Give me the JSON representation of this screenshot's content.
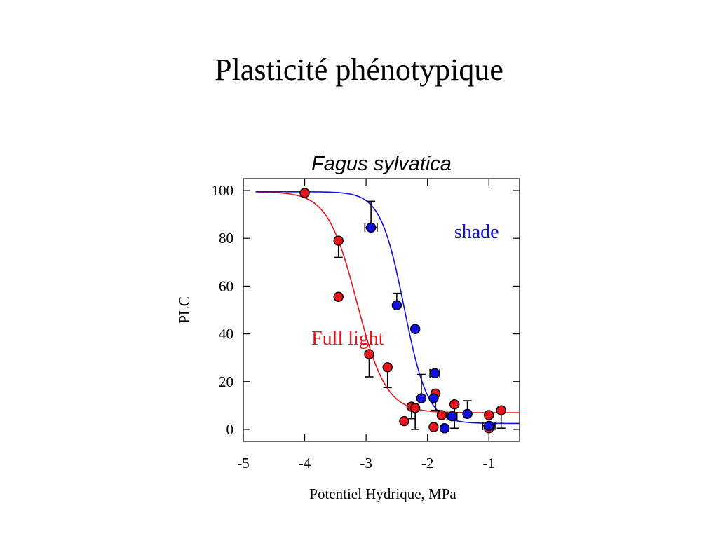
{
  "slide": {
    "title": "Plasticité phénotypique"
  },
  "chart_data": {
    "type": "scatter",
    "title": "Fagus sylvatica",
    "xlabel": "Potentiel Hydrique, MPa",
    "ylabel": "PLC",
    "xlim": [
      -5,
      -0.5
    ],
    "ylim": [
      -5,
      105
    ],
    "xticks": [
      -5,
      -4,
      -3,
      -2,
      -1
    ],
    "yticks": [
      0,
      20,
      40,
      60,
      80,
      100
    ],
    "series": [
      {
        "name": "Full light",
        "color": "#e8141b",
        "points": [
          {
            "x": -4.0,
            "y": 99,
            "err_up": 0
          },
          {
            "x": -3.45,
            "y": 79,
            "err_down": 7
          },
          {
            "x": -3.45,
            "y": 55.5
          },
          {
            "x": -2.95,
            "y": 31.5,
            "err_down": 9.5
          },
          {
            "x": -2.65,
            "y": 26,
            "err_down": 8.5
          },
          {
            "x": -2.38,
            "y": 3.5
          },
          {
            "x": -2.26,
            "y": 9.5,
            "err_down": 5
          },
          {
            "x": -2.2,
            "y": 9,
            "err_down": 9
          },
          {
            "x": -1.87,
            "y": 15,
            "err_down": 7
          },
          {
            "x": -1.9,
            "y": 1
          },
          {
            "x": -1.77,
            "y": 6
          },
          {
            "x": -1.56,
            "y": 10.5,
            "err_down": 10
          },
          {
            "x": -1.0,
            "y": 6
          },
          {
            "x": -1.0,
            "y": 0.5
          },
          {
            "x": -0.8,
            "y": 8,
            "err_down": 7.5
          }
        ],
        "fit": {
          "top": 99.5,
          "bottom": 7,
          "x50": -3.15,
          "slope": 4.2
        }
      },
      {
        "name": "shade",
        "color": "#1010e0",
        "points": [
          {
            "x": -2.92,
            "y": 84.5,
            "err_up": 11,
            "xerr": 0.1
          },
          {
            "x": -2.5,
            "y": 52,
            "err_up": 5
          },
          {
            "x": -2.2,
            "y": 42
          },
          {
            "x": -2.1,
            "y": 13,
            "err_up": 10
          },
          {
            "x": -1.88,
            "y": 23.5,
            "xerr": 0.08
          },
          {
            "x": -1.9,
            "y": 13
          },
          {
            "x": -1.72,
            "y": 0.5
          },
          {
            "x": -1.6,
            "y": 5.5,
            "xerr": 0.08
          },
          {
            "x": -1.35,
            "y": 6.5,
            "err_up": 5.5
          },
          {
            "x": -1.0,
            "y": 1.5,
            "xerr": 0.1
          }
        ],
        "fit": {
          "top": 99.5,
          "bottom": 2.5,
          "x50": -2.38,
          "slope": 5.2
        }
      }
    ],
    "annotations": [
      {
        "text": "shade",
        "series": "shade",
        "x": -1.2,
        "y": 80
      },
      {
        "text": "Full light",
        "series": "Full light",
        "x": -3.3,
        "y": 35.5
      }
    ]
  }
}
